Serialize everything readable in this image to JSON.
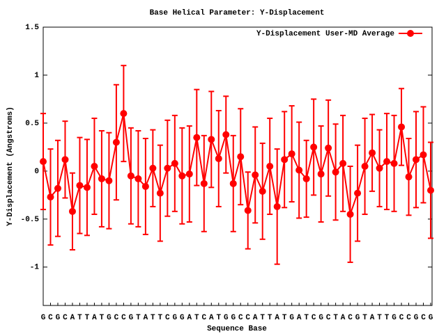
{
  "chart_data": {
    "type": "errorbar_line",
    "title": "Base  Helical Parameter: Y-Displacement",
    "x_label": "Sequence Base",
    "y_label": "Y-Displacement (Angstroms)",
    "categories": [
      "G",
      "C",
      "G",
      "C",
      "A",
      "T",
      "T",
      "A",
      "T",
      "G",
      "C",
      "C",
      "G",
      "T",
      "A",
      "T",
      "T",
      "C",
      "G",
      "G",
      "A",
      "T",
      "C",
      "A",
      "T",
      "G",
      "G",
      "C",
      "C",
      "A",
      "T",
      "T",
      "A",
      "T",
      "G",
      "A",
      "T",
      "C",
      "G",
      "C",
      "T",
      "A",
      "C",
      "G",
      "T",
      "A",
      "T",
      "T",
      "G",
      "C",
      "C",
      "G",
      "C",
      "G"
    ],
    "series": [
      {
        "name": "Y-Displacement User-MD Average",
        "color": "#ff0000",
        "values": [
          0.1,
          -0.27,
          -0.18,
          0.12,
          -0.42,
          -0.15,
          -0.17,
          0.05,
          -0.08,
          -0.1,
          0.3,
          0.6,
          -0.05,
          -0.08,
          -0.16,
          0.03,
          -0.23,
          0.03,
          0.08,
          -0.05,
          -0.03,
          0.35,
          -0.13,
          0.33,
          0.13,
          0.38,
          -0.13,
          0.15,
          -0.41,
          -0.04,
          -0.21,
          0.05,
          -0.37,
          0.12,
          0.18,
          0.01,
          -0.08,
          0.25,
          -0.03,
          0.24,
          -0.01,
          0.08,
          -0.45,
          -0.23,
          0.05,
          0.19,
          0.03,
          0.1,
          0.08,
          0.46,
          -0.06,
          0.12,
          0.17,
          -0.2
        ],
        "errors": [
          0.5,
          0.5,
          0.5,
          0.4,
          0.4,
          0.5,
          0.5,
          0.5,
          0.5,
          0.5,
          0.6,
          0.5,
          0.5,
          0.5,
          0.5,
          0.4,
          0.5,
          0.5,
          0.5,
          0.5,
          0.5,
          0.5,
          0.5,
          0.5,
          0.5,
          0.4,
          0.5,
          0.5,
          0.4,
          0.5,
          0.5,
          0.5,
          0.6,
          0.5,
          0.5,
          0.5,
          0.4,
          0.5,
          0.5,
          0.5,
          0.5,
          0.5,
          0.5,
          0.5,
          0.5,
          0.4,
          0.4,
          0.5,
          0.5,
          0.4,
          0.4,
          0.5,
          0.5,
          0.5
        ]
      }
    ],
    "ylim": [
      -1.4,
      1.5
    ],
    "yticks": [
      -1,
      -0.5,
      0,
      0.5,
      1,
      1.5
    ],
    "legend": "top-right"
  }
}
